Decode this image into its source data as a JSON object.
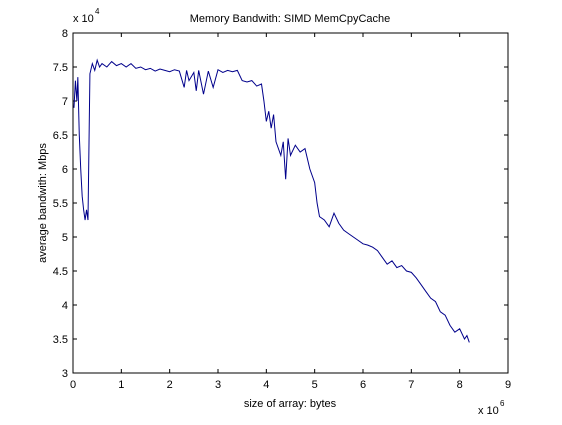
{
  "chart_data": {
    "type": "line",
    "title": "Memory Bandwith: SIMD MemCpyCache",
    "xlabel": "size of array: bytes",
    "ylabel": "average bandwith: Mbps",
    "x_multiplier": "x 10",
    "x_exponent": "6",
    "y_multiplier": "x 10",
    "y_exponent": "4",
    "xlim": [
      0,
      9
    ],
    "ylim": [
      3,
      8
    ],
    "xticks": [
      0,
      1,
      2,
      3,
      4,
      5,
      6,
      7,
      8,
      9
    ],
    "yticks": [
      3,
      3.5,
      4,
      4.5,
      5,
      5.5,
      6,
      6.5,
      7,
      7.5,
      8
    ],
    "grid": false,
    "series": [
      {
        "color": "#00008b",
        "x": [
          0.02,
          0.05,
          0.08,
          0.1,
          0.13,
          0.16,
          0.19,
          0.22,
          0.25,
          0.28,
          0.31,
          0.35,
          0.4,
          0.45,
          0.5,
          0.55,
          0.6,
          0.7,
          0.8,
          0.9,
          1.0,
          1.1,
          1.2,
          1.3,
          1.4,
          1.5,
          1.6,
          1.7,
          1.8,
          1.9,
          2.0,
          2.1,
          2.2,
          2.3,
          2.35,
          2.4,
          2.5,
          2.55,
          2.6,
          2.7,
          2.8,
          2.9,
          3.0,
          3.1,
          3.2,
          3.3,
          3.4,
          3.5,
          3.6,
          3.7,
          3.8,
          3.9,
          3.95,
          4.0,
          4.05,
          4.1,
          4.15,
          4.2,
          4.3,
          4.35,
          4.4,
          4.45,
          4.5,
          4.6,
          4.7,
          4.8,
          4.9,
          5.0,
          5.05,
          5.1,
          5.2,
          5.3,
          5.4,
          5.5,
          5.6,
          5.7,
          5.8,
          5.9,
          6.0,
          6.1,
          6.2,
          6.3,
          6.4,
          6.5,
          6.6,
          6.7,
          6.8,
          6.9,
          7.0,
          7.1,
          7.2,
          7.3,
          7.4,
          7.5,
          7.6,
          7.7,
          7.8,
          7.9,
          8.0,
          8.1,
          8.15,
          8.2
        ],
        "values": [
          6.9,
          7.3,
          7.0,
          7.35,
          6.5,
          6.0,
          5.6,
          5.4,
          5.25,
          5.4,
          5.25,
          7.4,
          7.55,
          7.45,
          7.6,
          7.5,
          7.55,
          7.5,
          7.58,
          7.52,
          7.55,
          7.5,
          7.55,
          7.48,
          7.5,
          7.46,
          7.48,
          7.44,
          7.47,
          7.45,
          7.43,
          7.46,
          7.44,
          7.2,
          7.45,
          7.3,
          7.42,
          7.15,
          7.45,
          7.1,
          7.44,
          7.2,
          7.46,
          7.42,
          7.45,
          7.43,
          7.45,
          7.3,
          7.28,
          7.3,
          7.22,
          7.25,
          7.0,
          6.7,
          6.85,
          6.6,
          6.8,
          6.4,
          6.2,
          6.4,
          5.85,
          6.45,
          6.2,
          6.35,
          6.25,
          6.3,
          6.0,
          5.8,
          5.5,
          5.3,
          5.25,
          5.15,
          5.35,
          5.2,
          5.1,
          5.05,
          5.0,
          4.95,
          4.9,
          4.88,
          4.85,
          4.8,
          4.7,
          4.6,
          4.65,
          4.55,
          4.58,
          4.5,
          4.48,
          4.4,
          4.3,
          4.2,
          4.1,
          4.05,
          3.9,
          3.85,
          3.7,
          3.6,
          3.65,
          3.5,
          3.55,
          3.45
        ]
      }
    ]
  }
}
